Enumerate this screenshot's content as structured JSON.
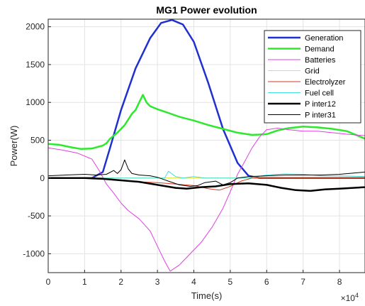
{
  "chart_data": {
    "type": "line",
    "title": "MG1 Power evolution",
    "xlabel": "Time(s)",
    "ylabel": "Power(W)",
    "x_multiplier": "×10",
    "x_exponent": "4",
    "xlim": [
      0,
      8.7
    ],
    "ylim": [
      -1250,
      2100
    ],
    "xticks": [
      0,
      1,
      2,
      3,
      4,
      5,
      6,
      7,
      8
    ],
    "xtick_labels": [
      "0",
      "1",
      "2",
      "3",
      "4",
      "5",
      "6",
      "7",
      "8"
    ],
    "yticks": [
      -1000,
      -500,
      0,
      500,
      1000,
      1500,
      2000
    ],
    "ytick_labels": [
      "-1000",
      "-500",
      "0",
      "500",
      "1000",
      "1500",
      "2000"
    ],
    "grid": true,
    "legend_position": "top-right",
    "series": [
      {
        "name": "Generation",
        "color": "#1f2fd0",
        "width": 2.5,
        "points": [
          [
            0,
            0
          ],
          [
            1.2,
            0
          ],
          [
            1.5,
            80
          ],
          [
            1.7,
            400
          ],
          [
            2.0,
            900
          ],
          [
            2.4,
            1450
          ],
          [
            2.8,
            1850
          ],
          [
            3.1,
            2050
          ],
          [
            3.4,
            2090
          ],
          [
            3.7,
            2030
          ],
          [
            4.0,
            1800
          ],
          [
            4.4,
            1250
          ],
          [
            4.8,
            650
          ],
          [
            5.2,
            200
          ],
          [
            5.5,
            30
          ],
          [
            5.8,
            0
          ],
          [
            8.7,
            0
          ]
        ]
      },
      {
        "name": "Demand",
        "color": "#2ee82e",
        "width": 2.5,
        "points": [
          [
            0,
            450
          ],
          [
            0.3,
            440
          ],
          [
            0.6,
            410
          ],
          [
            0.9,
            385
          ],
          [
            1.2,
            390
          ],
          [
            1.5,
            430
          ],
          [
            1.6,
            460
          ],
          [
            1.7,
            520
          ],
          [
            1.9,
            600
          ],
          [
            2.1,
            700
          ],
          [
            2.3,
            850
          ],
          [
            2.4,
            900
          ],
          [
            2.5,
            1000
          ],
          [
            2.6,
            1100
          ],
          [
            2.7,
            1000
          ],
          [
            2.8,
            950
          ],
          [
            3.0,
            910
          ],
          [
            3.3,
            860
          ],
          [
            3.6,
            810
          ],
          [
            4.0,
            760
          ],
          [
            4.4,
            700
          ],
          [
            4.8,
            650
          ],
          [
            5.2,
            600
          ],
          [
            5.6,
            570
          ],
          [
            6.0,
            580
          ],
          [
            6.3,
            630
          ],
          [
            6.6,
            660
          ],
          [
            7.0,
            680
          ],
          [
            7.4,
            670
          ],
          [
            7.8,
            650
          ],
          [
            8.2,
            620
          ],
          [
            8.5,
            560
          ],
          [
            8.7,
            520
          ]
        ]
      },
      {
        "name": "Batteries",
        "color": "#e040e0",
        "width": 1,
        "points": [
          [
            0,
            400
          ],
          [
            0.4,
            370
          ],
          [
            0.8,
            330
          ],
          [
            1.2,
            250
          ],
          [
            1.4,
            100
          ],
          [
            1.6,
            -80
          ],
          [
            1.8,
            -200
          ],
          [
            2.0,
            -330
          ],
          [
            2.2,
            -430
          ],
          [
            2.5,
            -540
          ],
          [
            2.8,
            -700
          ],
          [
            3.0,
            -900
          ],
          [
            3.2,
            -1100
          ],
          [
            3.35,
            -1230
          ],
          [
            3.6,
            -1150
          ],
          [
            3.9,
            -1000
          ],
          [
            4.2,
            -850
          ],
          [
            4.5,
            -650
          ],
          [
            4.8,
            -400
          ],
          [
            5.0,
            -180
          ],
          [
            5.2,
            50
          ],
          [
            5.4,
            220
          ],
          [
            5.6,
            400
          ],
          [
            5.8,
            540
          ],
          [
            6.0,
            640
          ],
          [
            6.3,
            660
          ],
          [
            6.6,
            640
          ],
          [
            7.0,
            620
          ],
          [
            7.4,
            620
          ],
          [
            7.8,
            600
          ],
          [
            8.2,
            580
          ],
          [
            8.7,
            560
          ]
        ]
      },
      {
        "name": "Grid",
        "color": "#e8e820",
        "width": 1,
        "points": [
          [
            0,
            0
          ],
          [
            8.7,
            0
          ]
        ]
      },
      {
        "name": "Electrolyzer",
        "color": "#d23b1e",
        "width": 1,
        "points": [
          [
            0,
            0
          ],
          [
            1.5,
            0
          ],
          [
            2.0,
            -30
          ],
          [
            2.5,
            -50
          ],
          [
            3.0,
            -60
          ],
          [
            3.5,
            -80
          ],
          [
            4.0,
            -100
          ],
          [
            4.4,
            -140
          ],
          [
            4.7,
            -160
          ],
          [
            5.0,
            -110
          ],
          [
            5.3,
            -40
          ],
          [
            5.6,
            0
          ],
          [
            8.7,
            0
          ]
        ]
      },
      {
        "name": "Fuel cell",
        "color": "#40e0e0",
        "width": 1,
        "points": [
          [
            0,
            0
          ],
          [
            3.2,
            0
          ],
          [
            3.3,
            90
          ],
          [
            3.5,
            20
          ],
          [
            3.7,
            0
          ],
          [
            4.0,
            20
          ],
          [
            4.3,
            0
          ],
          [
            5.5,
            0
          ],
          [
            6.0,
            40
          ],
          [
            6.5,
            55
          ],
          [
            7.0,
            50
          ],
          [
            7.5,
            30
          ],
          [
            8.0,
            30
          ],
          [
            8.7,
            20
          ]
        ]
      },
      {
        "name": "P inter12",
        "color": "#000000",
        "width": 2.5,
        "points": [
          [
            0,
            0
          ],
          [
            1.0,
            0
          ],
          [
            1.5,
            -10
          ],
          [
            2.0,
            -30
          ],
          [
            2.5,
            -50
          ],
          [
            3.0,
            -90
          ],
          [
            3.5,
            -130
          ],
          [
            3.8,
            -140
          ],
          [
            4.2,
            -120
          ],
          [
            4.6,
            -110
          ],
          [
            5.0,
            -80
          ],
          [
            5.5,
            -70
          ],
          [
            6.0,
            -90
          ],
          [
            6.4,
            -130
          ],
          [
            6.8,
            -160
          ],
          [
            7.2,
            -170
          ],
          [
            7.6,
            -150
          ],
          [
            8.0,
            -140
          ],
          [
            8.7,
            -120
          ]
        ]
      },
      {
        "name": "P inter31",
        "color": "#000000",
        "width": 1,
        "points": [
          [
            0,
            30
          ],
          [
            0.5,
            40
          ],
          [
            1.0,
            50
          ],
          [
            1.3,
            40
          ],
          [
            1.6,
            50
          ],
          [
            1.8,
            100
          ],
          [
            1.9,
            60
          ],
          [
            2.0,
            110
          ],
          [
            2.1,
            240
          ],
          [
            2.2,
            120
          ],
          [
            2.3,
            60
          ],
          [
            2.5,
            40
          ],
          [
            2.8,
            30
          ],
          [
            3.0,
            10
          ],
          [
            3.3,
            -40
          ],
          [
            3.6,
            -90
          ],
          [
            3.9,
            -110
          ],
          [
            4.1,
            -100
          ],
          [
            4.3,
            -60
          ],
          [
            4.6,
            -40
          ],
          [
            4.8,
            -90
          ],
          [
            5.0,
            -60
          ],
          [
            5.2,
            0
          ],
          [
            5.5,
            20
          ],
          [
            6.0,
            30
          ],
          [
            6.5,
            40
          ],
          [
            7.0,
            40
          ],
          [
            7.5,
            40
          ],
          [
            8.0,
            50
          ],
          [
            8.5,
            70
          ],
          [
            8.7,
            80
          ]
        ]
      }
    ]
  }
}
